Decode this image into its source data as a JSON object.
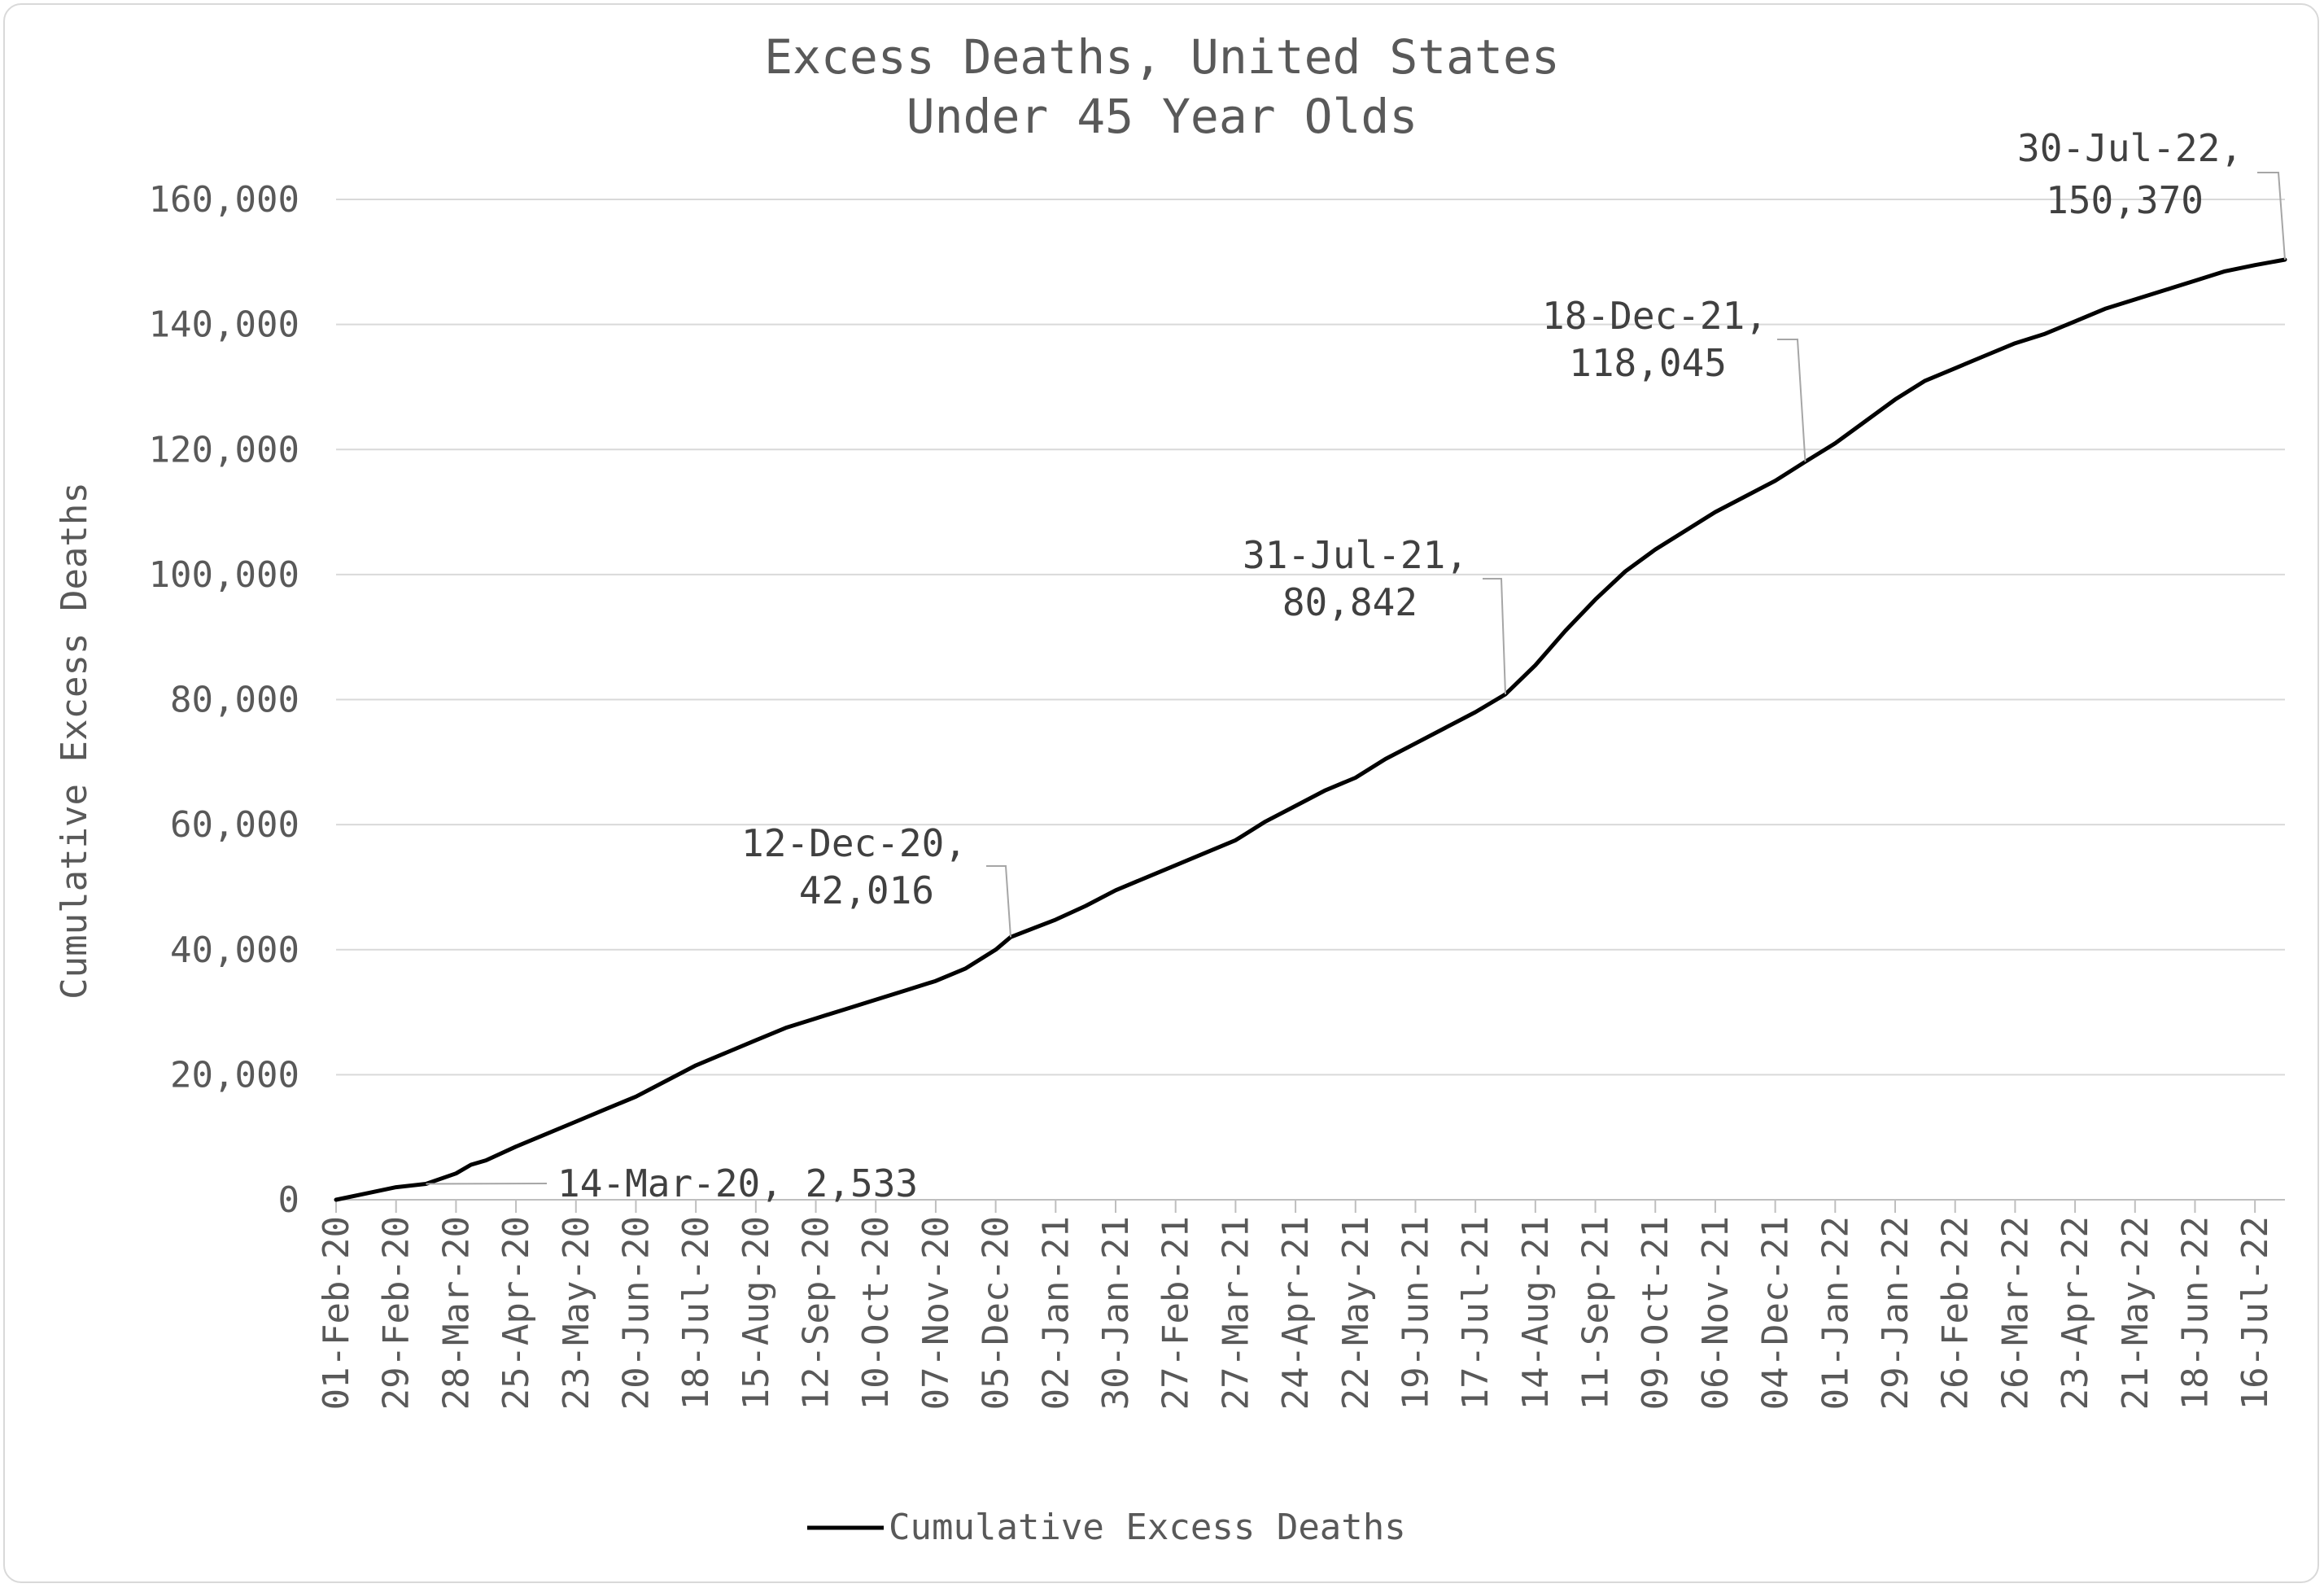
{
  "chart_data": {
    "type": "line",
    "title": "Excess Deaths, United States",
    "subtitle": "Under 45 Year Olds",
    "xlabel": "",
    "ylabel": "Cumulative Excess Deaths",
    "ylim": [
      0,
      160000
    ],
    "yticks": [
      0,
      20000,
      40000,
      60000,
      80000,
      100000,
      120000,
      140000,
      160000
    ],
    "ytick_labels": [
      "0",
      "20,000",
      "40,000",
      "60,000",
      "80,000",
      "100,000",
      "120,000",
      "140,000",
      "160,000"
    ],
    "xlim": [
      "2020-02-01",
      "2022-07-30"
    ],
    "x_tick_labels": [
      {
        "date": "2020-02-01",
        "label": "01-Feb-20"
      },
      {
        "date": "2020-02-29",
        "label": "29-Feb-20"
      },
      {
        "date": "2020-03-28",
        "label": "28-Mar-20"
      },
      {
        "date": "2020-04-25",
        "label": "25-Apr-20"
      },
      {
        "date": "2020-05-23",
        "label": "23-May-20"
      },
      {
        "date": "2020-06-20",
        "label": "20-Jun-20"
      },
      {
        "date": "2020-07-18",
        "label": "18-Jul-20"
      },
      {
        "date": "2020-08-15",
        "label": "15-Aug-20"
      },
      {
        "date": "2020-09-12",
        "label": "12-Sep-20"
      },
      {
        "date": "2020-10-10",
        "label": "10-Oct-20"
      },
      {
        "date": "2020-11-07",
        "label": "07-Nov-20"
      },
      {
        "date": "2020-12-05",
        "label": "05-Dec-20"
      },
      {
        "date": "2021-01-02",
        "label": "02-Jan-21"
      },
      {
        "date": "2021-01-30",
        "label": "30-Jan-21"
      },
      {
        "date": "2021-02-27",
        "label": "27-Feb-21"
      },
      {
        "date": "2021-03-27",
        "label": "27-Mar-21"
      },
      {
        "date": "2021-04-24",
        "label": "24-Apr-21"
      },
      {
        "date": "2021-05-22",
        "label": "22-May-21"
      },
      {
        "date": "2021-06-19",
        "label": "19-Jun-21"
      },
      {
        "date": "2021-07-17",
        "label": "17-Jul-21"
      },
      {
        "date": "2021-08-14",
        "label": "14-Aug-21"
      },
      {
        "date": "2021-09-11",
        "label": "11-Sep-21"
      },
      {
        "date": "2021-10-09",
        "label": "09-Oct-21"
      },
      {
        "date": "2021-11-06",
        "label": "06-Nov-21"
      },
      {
        "date": "2021-12-04",
        "label": "04-Dec-21"
      },
      {
        "date": "2022-01-01",
        "label": "01-Jan-22"
      },
      {
        "date": "2022-01-29",
        "label": "29-Jan-22"
      },
      {
        "date": "2022-02-26",
        "label": "26-Feb-22"
      },
      {
        "date": "2022-03-26",
        "label": "26-Mar-22"
      },
      {
        "date": "2022-04-23",
        "label": "23-Apr-22"
      },
      {
        "date": "2022-05-21",
        "label": "21-May-22"
      },
      {
        "date": "2022-06-18",
        "label": "18-Jun-22"
      },
      {
        "date": "2022-07-16",
        "label": "16-Jul-22"
      }
    ],
    "grid": true,
    "legend_position": "bottom",
    "series": [
      {
        "name": "Cumulative Excess Deaths",
        "color": "#000000",
        "points": [
          [
            "2020-02-01",
            0
          ],
          [
            "2020-02-15",
            1000
          ],
          [
            "2020-02-29",
            2000
          ],
          [
            "2020-03-14",
            2533
          ],
          [
            "2020-03-28",
            4200
          ],
          [
            "2020-04-04",
            5600
          ],
          [
            "2020-04-11",
            6300
          ],
          [
            "2020-04-25",
            8500
          ],
          [
            "2020-05-23",
            12500
          ],
          [
            "2020-06-06",
            14500
          ],
          [
            "2020-06-20",
            16500
          ],
          [
            "2020-07-04",
            19000
          ],
          [
            "2020-07-18",
            21500
          ],
          [
            "2020-08-01",
            23500
          ],
          [
            "2020-08-15",
            25500
          ],
          [
            "2020-08-29",
            27500
          ],
          [
            "2020-09-12",
            29000
          ],
          [
            "2020-09-26",
            30500
          ],
          [
            "2020-10-10",
            32000
          ],
          [
            "2020-10-24",
            33500
          ],
          [
            "2020-11-07",
            35000
          ],
          [
            "2020-11-21",
            37000
          ],
          [
            "2020-12-05",
            40000
          ],
          [
            "2020-12-12",
            42016
          ],
          [
            "2021-01-02",
            44800
          ],
          [
            "2021-01-16",
            47000
          ],
          [
            "2021-01-30",
            49500
          ],
          [
            "2021-02-13",
            51500
          ],
          [
            "2021-02-27",
            53500
          ],
          [
            "2021-03-13",
            55500
          ],
          [
            "2021-03-27",
            57500
          ],
          [
            "2021-04-10",
            60500
          ],
          [
            "2021-04-24",
            63000
          ],
          [
            "2021-05-08",
            65500
          ],
          [
            "2021-05-22",
            67500
          ],
          [
            "2021-06-05",
            70500
          ],
          [
            "2021-06-19",
            73000
          ],
          [
            "2021-07-03",
            75500
          ],
          [
            "2021-07-17",
            78000
          ],
          [
            "2021-07-31",
            80842
          ],
          [
            "2021-08-14",
            85500
          ],
          [
            "2021-08-28",
            91000
          ],
          [
            "2021-09-11",
            96000
          ],
          [
            "2021-09-25",
            100500
          ],
          [
            "2021-10-09",
            104000
          ],
          [
            "2021-10-23",
            107000
          ],
          [
            "2021-11-06",
            110000
          ],
          [
            "2021-11-20",
            112500
          ],
          [
            "2021-12-04",
            115000
          ],
          [
            "2021-12-18",
            118045
          ],
          [
            "2022-01-01",
            121000
          ],
          [
            "2022-01-15",
            124500
          ],
          [
            "2022-01-29",
            128000
          ],
          [
            "2022-02-12",
            131000
          ],
          [
            "2022-02-26",
            133000
          ],
          [
            "2022-03-12",
            135000
          ],
          [
            "2022-03-26",
            137000
          ],
          [
            "2022-04-09",
            138500
          ],
          [
            "2022-04-23",
            140500
          ],
          [
            "2022-05-07",
            142500
          ],
          [
            "2022-05-21",
            144000
          ],
          [
            "2022-06-04",
            145500
          ],
          [
            "2022-06-18",
            147000
          ],
          [
            "2022-07-02",
            148500
          ],
          [
            "2022-07-16",
            149500
          ],
          [
            "2022-07-30",
            150370
          ]
        ]
      }
    ],
    "annotations": [
      {
        "date": "2020-03-14",
        "value": 2533,
        "line1": "14-Mar-20, 2,533",
        "line2": ""
      },
      {
        "date": "2020-12-12",
        "value": 42016,
        "line1": "12-Dec-20,",
        "line2": "42,016"
      },
      {
        "date": "2021-07-31",
        "value": 80842,
        "line1": "31-Jul-21,",
        "line2": "80,842"
      },
      {
        "date": "2021-12-18",
        "value": 118045,
        "line1": "18-Dec-21,",
        "line2": "118,045"
      },
      {
        "date": "2022-07-30",
        "value": 150370,
        "line1": "30-Jul-22,",
        "line2": "150,370"
      }
    ]
  }
}
